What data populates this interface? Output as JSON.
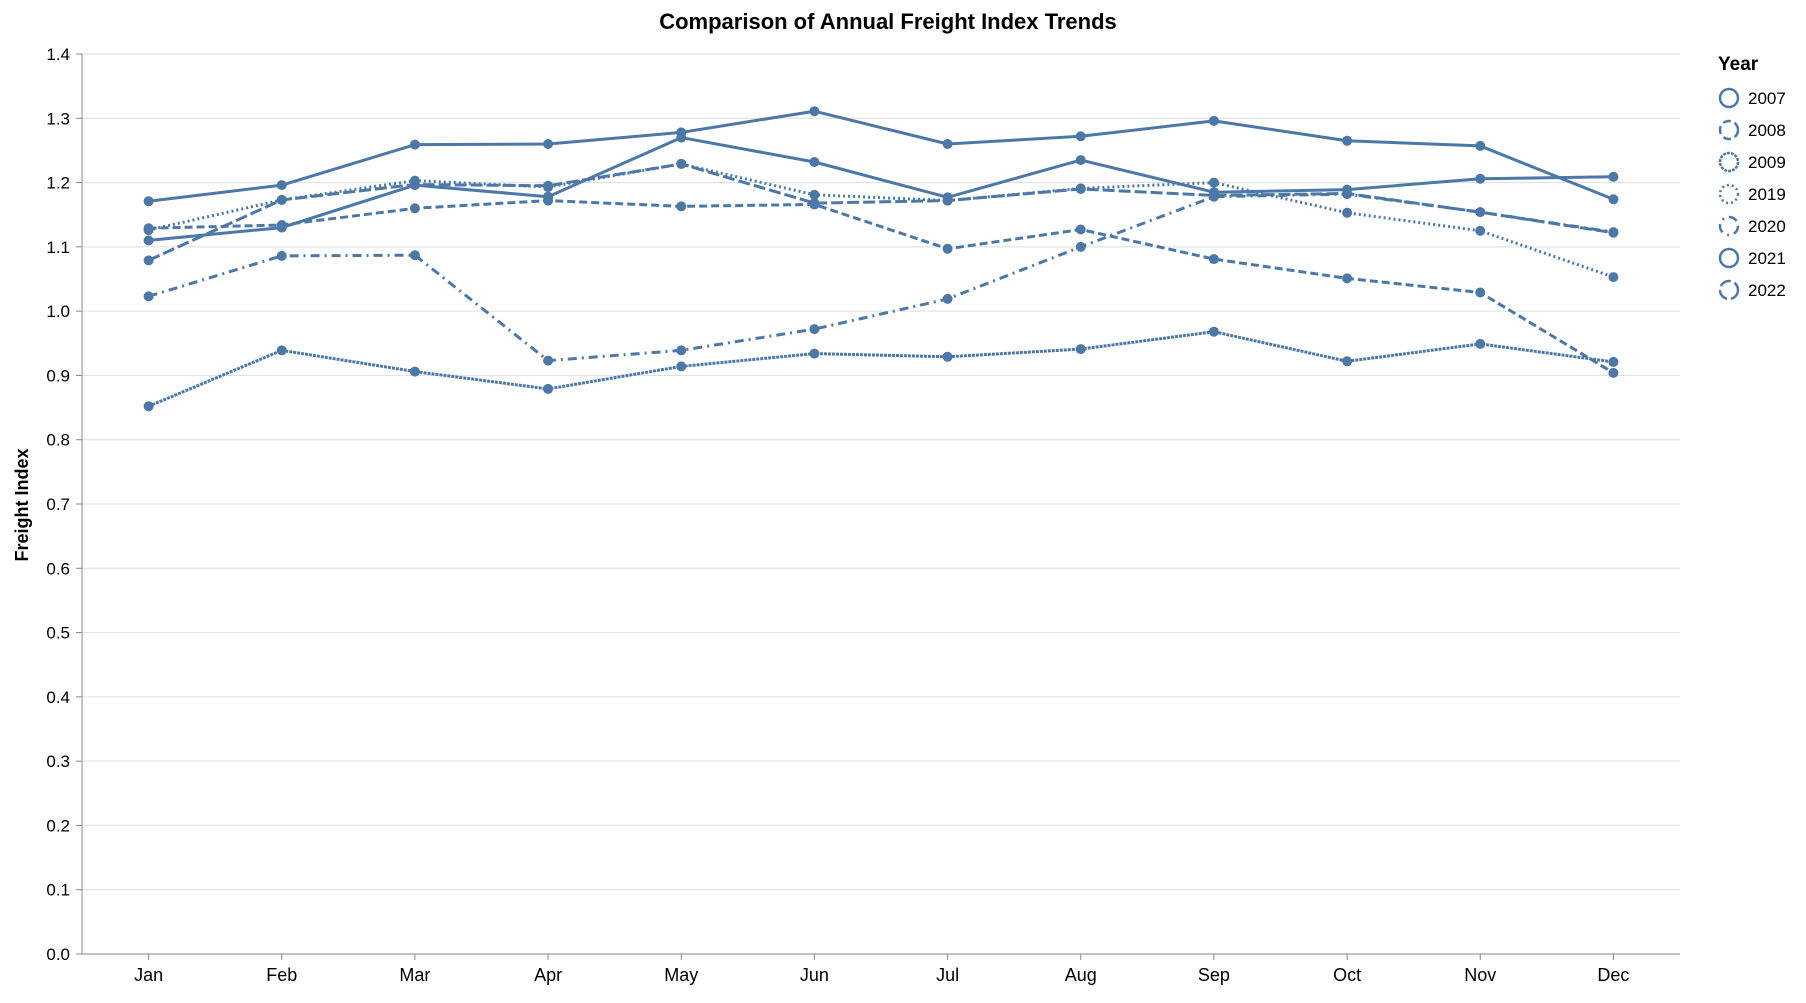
{
  "chart_data": {
    "type": "line",
    "title": "Comparison of Annual Freight Index Trends",
    "xlabel": "",
    "ylabel": "Freight Index",
    "categories": [
      "Jan",
      "Feb",
      "Mar",
      "Apr",
      "May",
      "Jun",
      "Jul",
      "Aug",
      "Sep",
      "Oct",
      "Nov",
      "Dec"
    ],
    "ylim": [
      0,
      1.4
    ],
    "yticks": [
      "0.0",
      "0.1",
      "0.2",
      "0.3",
      "0.4",
      "0.5",
      "0.6",
      "0.7",
      "0.8",
      "0.9",
      "1.0",
      "1.1",
      "1.2",
      "1.3",
      "1.4"
    ],
    "grid": true,
    "legend": {
      "title": "Year",
      "position": "right"
    },
    "color": "#4c78a8",
    "series": [
      {
        "name": "2007",
        "dash": "solid",
        "values": [
          1.171,
          1.196,
          1.259,
          1.26,
          1.278,
          1.311,
          1.26,
          1.272,
          1.296,
          1.265,
          1.257,
          1.174
        ]
      },
      {
        "name": "2008",
        "dash": "dashed",
        "values": [
          1.129,
          1.134,
          1.16,
          1.172,
          1.163,
          1.166,
          1.097,
          1.127,
          1.081,
          1.051,
          1.029,
          0.904
        ]
      },
      {
        "name": "2009",
        "dash": "dotted",
        "values": [
          0.852,
          0.939,
          0.906,
          0.879,
          0.914,
          0.934,
          0.929,
          0.941,
          0.968,
          0.922,
          0.949,
          0.921
        ]
      },
      {
        "name": "2019",
        "dash": "fine-dotted",
        "values": [
          1.126,
          1.173,
          1.203,
          1.193,
          1.229,
          1.181,
          1.172,
          1.191,
          1.2,
          1.153,
          1.125,
          1.053
        ]
      },
      {
        "name": "2020",
        "dash": "dash-dot",
        "values": [
          1.023,
          1.086,
          1.087,
          0.923,
          0.939,
          0.972,
          1.019,
          1.1,
          1.178,
          1.182,
          1.154,
          1.123
        ]
      },
      {
        "name": "2021",
        "dash": "solid",
        "values": [
          1.11,
          1.13,
          1.196,
          1.178,
          1.27,
          1.232,
          1.177,
          1.235,
          1.185,
          1.189,
          1.206,
          1.209
        ]
      },
      {
        "name": "2022",
        "dash": "long-dashed",
        "values": [
          1.079,
          1.173,
          1.197,
          1.195,
          1.229,
          1.168,
          1.172,
          1.19,
          1.18,
          1.183,
          1.154,
          1.122
        ]
      }
    ]
  }
}
